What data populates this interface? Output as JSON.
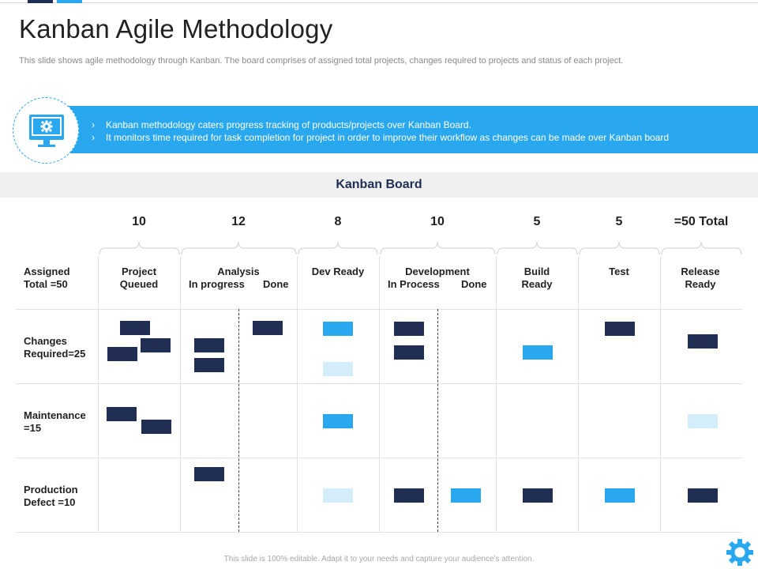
{
  "slide": {
    "title": "Kanban Agile Methodology",
    "subtitle": "This slide shows agile methodology through Kanban. The board comprises of assigned total projects, changes required to projects and status of each project.",
    "bullets": [
      "Kanban methodology caters progress tracking of products/projects over Kanban Board.",
      "It monitors time required for task completion for project in order to improve their workflow as changes can be made over Kanban board"
    ],
    "bullet_marker": "›",
    "footer": "This slide is 100% editable. Adapt it to your needs and capture your audience's attention.",
    "icons": [
      "monitor-gear-icon",
      "gear-icon"
    ],
    "colors": {
      "accent": "#29a8ef",
      "dark": "#1f2e52",
      "light": "#d3edfb"
    }
  },
  "board": {
    "title": "Kanban Board",
    "counts": [
      "10",
      "12",
      "8",
      "10",
      "5",
      "5",
      "=50 Total"
    ],
    "assigned_label": [
      "Assigned",
      "Total =50"
    ],
    "columns": {
      "project_queued": [
        "Project",
        "Queued"
      ],
      "analysis": "Analysis",
      "analysis_in_progress": "In progress",
      "analysis_done": "Done",
      "dev_ready": "Dev Ready",
      "development": "Development",
      "development_in_process": "In Process",
      "development_done": "Done",
      "build_ready": [
        "Build",
        "Ready"
      ],
      "test": "Test",
      "release_ready": [
        "Release",
        "Ready"
      ]
    },
    "rows": [
      {
        "label": [
          "Changes",
          "Required=25"
        ]
      },
      {
        "label": [
          "Maintenance",
          "=15"
        ]
      },
      {
        "label": [
          "Production",
          "Defect =10"
        ]
      }
    ],
    "cards": {
      "changes_required": {
        "project_queued": [
          "dark",
          "dark",
          "dark"
        ],
        "analysis_in_progress": [
          "dark",
          "dark"
        ],
        "analysis_done": [
          "dark"
        ],
        "dev_ready": [
          "blue",
          "light"
        ],
        "development_in_process": [
          "dark",
          "dark"
        ],
        "build_ready": [
          "blue"
        ],
        "test": [
          "dark"
        ],
        "release_ready": [
          "dark"
        ]
      },
      "maintenance": {
        "project_queued": [
          "dark",
          "dark"
        ],
        "dev_ready": [
          "blue"
        ],
        "release_ready": [
          "light"
        ]
      },
      "production_defect": {
        "analysis_in_progress": [
          "dark"
        ],
        "dev_ready": [
          "light"
        ],
        "development_in_process": [
          "dark"
        ],
        "development_done": [
          "blue"
        ],
        "build_ready": [
          "dark"
        ],
        "test": [
          "blue"
        ],
        "release_ready": [
          "dark"
        ]
      }
    }
  }
}
